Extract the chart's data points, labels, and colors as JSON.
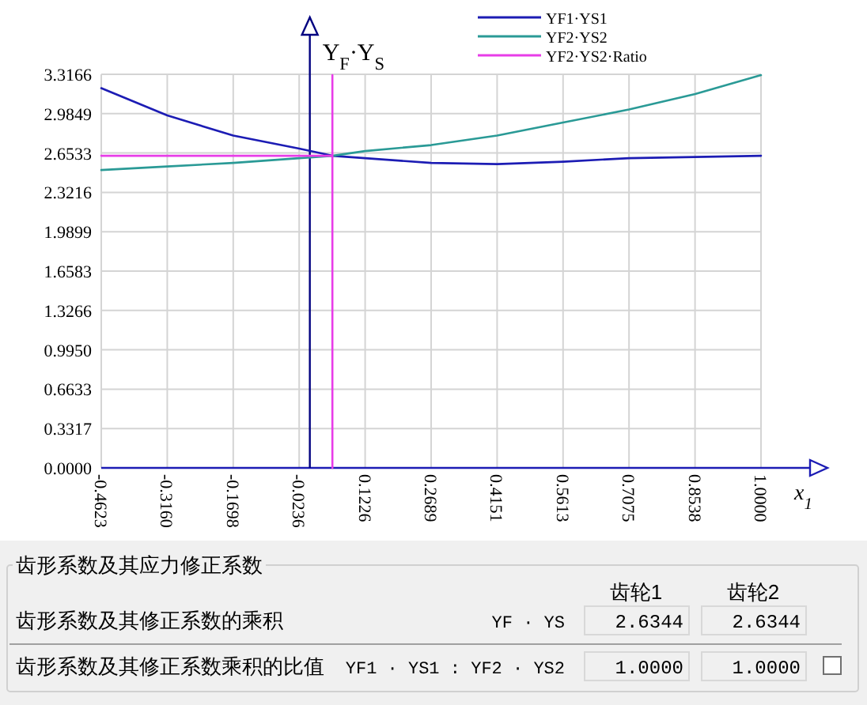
{
  "chart_data": {
    "type": "line",
    "xlabel": "x$_{1}$",
    "ylabel": "Y$_{F}$·Y$_{S}$",
    "xlim": [
      -0.4623,
      1.0
    ],
    "ylim": [
      0,
      3.3166
    ],
    "xticks": [
      {
        "value": -0.4623,
        "label": "-0.4623"
      },
      {
        "value": -0.316,
        "label": "-0.3160"
      },
      {
        "value": -0.1698,
        "label": "-0.1698"
      },
      {
        "value": -0.0236,
        "label": "-0.0236"
      },
      {
        "value": 0.1226,
        "label": "0.1226"
      },
      {
        "value": 0.2689,
        "label": "0.2689"
      },
      {
        "value": 0.4151,
        "label": "0.4151"
      },
      {
        "value": 0.5613,
        "label": "0.5613"
      },
      {
        "value": 0.7075,
        "label": "0.7075"
      },
      {
        "value": 0.8538,
        "label": "0.8538"
      },
      {
        "value": 1.0,
        "label": "1.0000"
      }
    ],
    "yticks": [
      {
        "value": 0,
        "label": "0.0000"
      },
      {
        "value": 0.3317,
        "label": "0.3317"
      },
      {
        "value": 0.6633,
        "label": "0.6633"
      },
      {
        "value": 0.995,
        "label": "0.9950"
      },
      {
        "value": 1.3266,
        "label": "1.3266"
      },
      {
        "value": 1.6583,
        "label": "1.6583"
      },
      {
        "value": 1.9899,
        "label": "1.9899"
      },
      {
        "value": 2.3216,
        "label": "2.3216"
      },
      {
        "value": 2.6533,
        "label": "2.6533"
      },
      {
        "value": 2.9849,
        "label": "2.9849"
      },
      {
        "value": 3.3166,
        "label": "3.3166"
      }
    ],
    "grid": true,
    "legend": "top right",
    "series": [
      {
        "name": "YF1·YS1",
        "color": "#1c1cb4",
        "x": [
          -0.4623,
          -0.316,
          -0.1698,
          -0.0236,
          0.05,
          0.1226,
          0.2689,
          0.4151,
          0.5613,
          0.7075,
          0.8538,
          1.0
        ],
        "values": [
          3.2,
          2.97,
          2.8,
          2.69,
          2.63,
          2.61,
          2.57,
          2.56,
          2.58,
          2.61,
          2.62,
          2.63
        ]
      },
      {
        "name": "YF2·YS2",
        "color": "#2a9a96",
        "x": [
          -0.4623,
          -0.316,
          -0.1698,
          -0.0236,
          0.05,
          0.1226,
          0.2689,
          0.4151,
          0.5613,
          0.7075,
          0.8538,
          1.0
        ],
        "values": [
          2.51,
          2.54,
          2.57,
          2.61,
          2.63,
          2.67,
          2.72,
          2.8,
          2.91,
          3.02,
          3.15,
          3.31
        ]
      },
      {
        "name": "YF2·YS2·Ratio",
        "color": "#e83ce8",
        "x": [
          -0.4623,
          0.05,
          0.05,
          0.05
        ],
        "values": [
          2.63,
          2.63,
          3.31,
          0
        ]
      }
    ],
    "ref_lines": [
      {
        "axis": "x",
        "value": 0,
        "color": "#000080"
      }
    ],
    "annotations": [
      "齿形系数及其应力修正系数",
      "齿轮1",
      "齿轮2",
      "齿形系数及其修正系数的乘积",
      "YF · YS",
      "2.6344",
      "2.6344",
      "齿形系数及其修正系数乘积的比值",
      "YF1 · YS1 : YF2 · YS2",
      "1.0000",
      "1.0000"
    ]
  }
}
